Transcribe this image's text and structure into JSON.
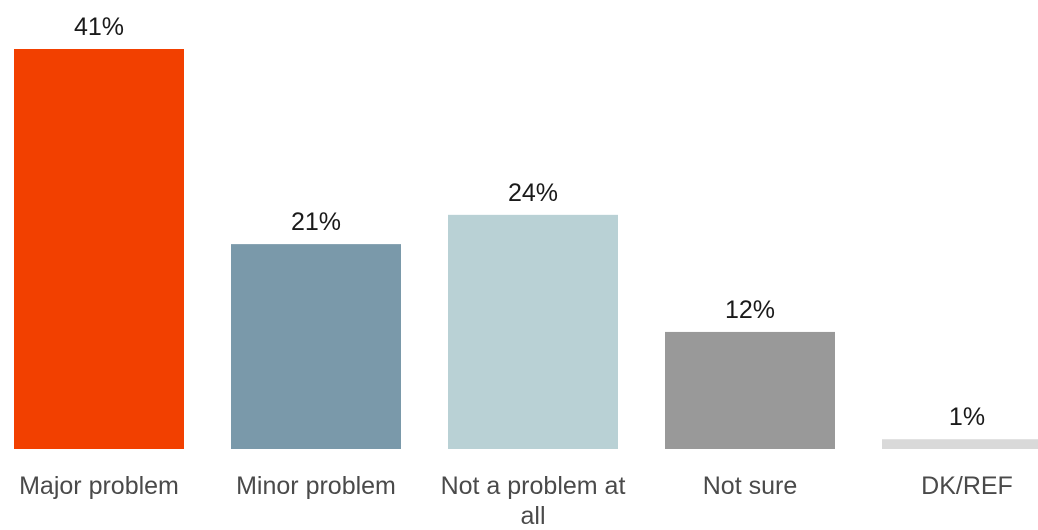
{
  "chart_data": {
    "type": "bar",
    "title": "",
    "xlabel": "",
    "ylabel": "",
    "categories": [
      "Major problem",
      "Minor problem",
      "Not a problem at all",
      "Not sure",
      "DK/REF"
    ],
    "category_label_lines": [
      [
        "Major problem"
      ],
      [
        "Minor problem"
      ],
      [
        "Not a problem at",
        "all"
      ],
      [
        "Not sure"
      ],
      [
        "DK/REF"
      ]
    ],
    "values": [
      41,
      21,
      24,
      12,
      1
    ],
    "data_labels": [
      "41%",
      "21%",
      "24%",
      "12%",
      "1%"
    ],
    "unit": "%",
    "colors": [
      "#f24000",
      "#7a99aa",
      "#b9d1d5",
      "#999999",
      "#d9d9d9"
    ],
    "ylim": [
      0,
      41
    ],
    "grid": false,
    "legend": "none"
  }
}
